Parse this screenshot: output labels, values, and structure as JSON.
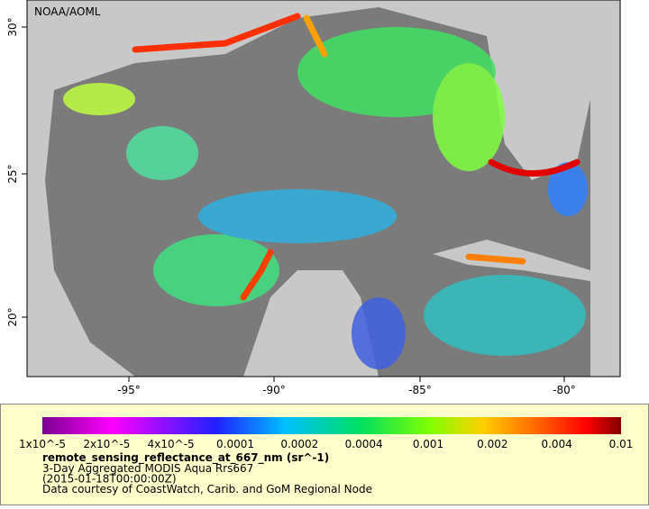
{
  "map": {
    "credit": "NOAA/AOML",
    "lat_ticks": [
      "30°",
      "25°",
      "20°"
    ],
    "lon_ticks": [
      "-95°",
      "-90°",
      "-85°",
      "-80°"
    ]
  },
  "legend": {
    "scale_labels": [
      "1x10^-5",
      "2x10^-5",
      "4x10^-5",
      "0.0001",
      "0.0002",
      "0.0004",
      "0.001",
      "0.002",
      "0.004",
      "0.01"
    ],
    "variable": "remote_sensing_reflectance_at_667_nm (sr^-1)",
    "lines": [
      "3-Day Aggregated MODIS Aqua Rrs667",
      "(2015-01-18T00:00:00Z)",
      "Data courtesy of CoastWatch, Carib. and GoM Regional Node"
    ]
  }
}
